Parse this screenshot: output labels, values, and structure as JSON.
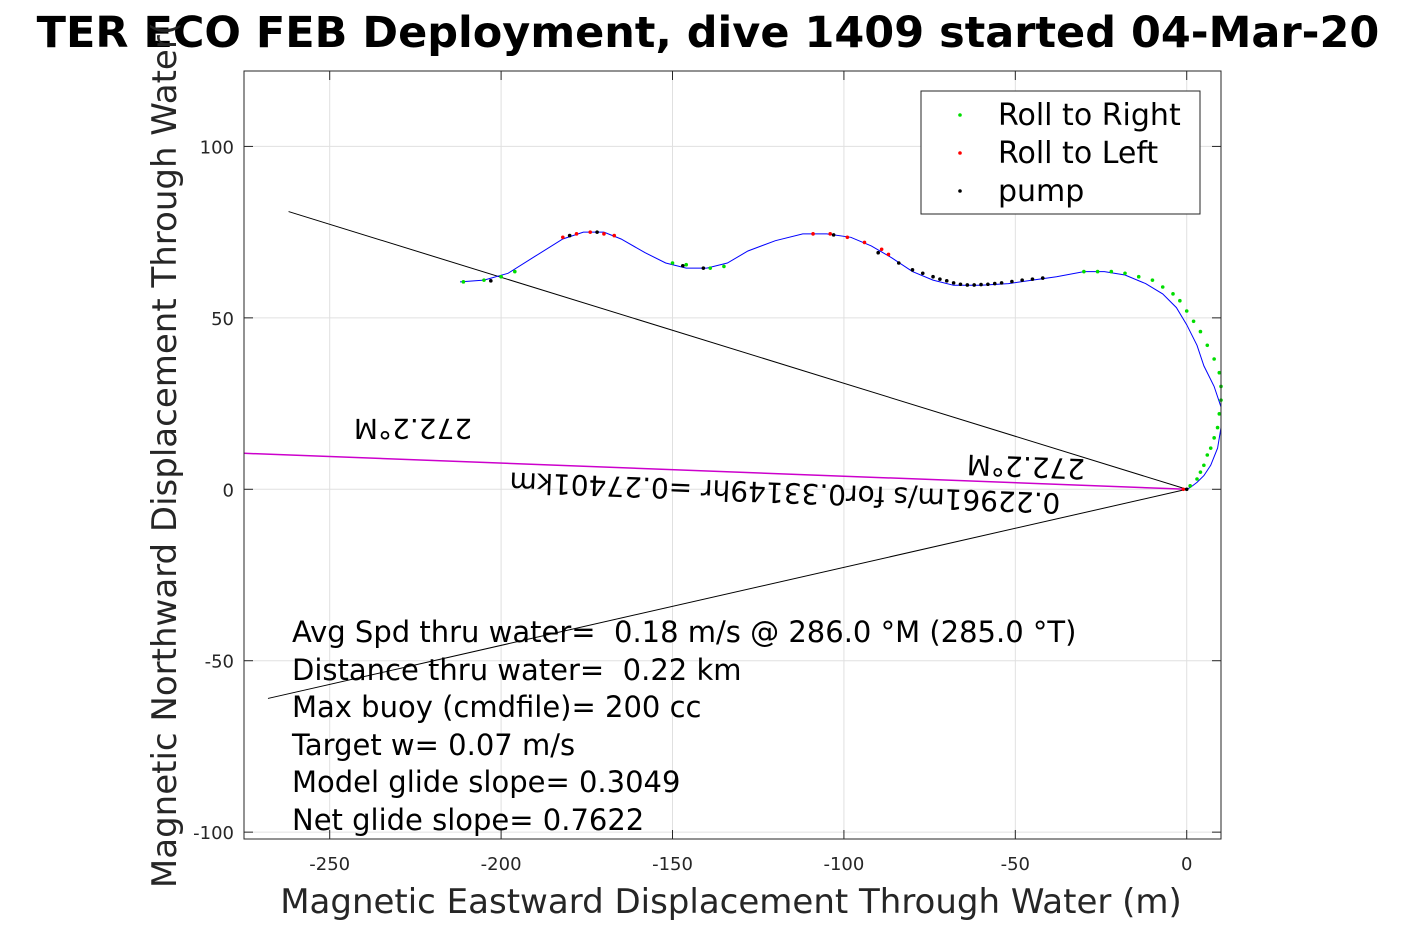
{
  "chart_data": {
    "type": "scatter",
    "title": "TER ECO FEB Deployment, dive 1409 started 04-Mar-20",
    "xlabel": "Magnetic Eastward Displacement Through Water (m)",
    "ylabel": "Magnetic Northward Displacement Through Water(",
    "xlim": [
      -275,
      10
    ],
    "ylim": [
      -102,
      122
    ],
    "xticks": [
      -250,
      -200,
      -150,
      -100,
      -50,
      0
    ],
    "yticks": [
      -100,
      -50,
      0,
      50,
      100
    ],
    "xtick_labels": [
      "-250",
      "-200",
      "-150",
      "-100",
      "-50",
      "0"
    ],
    "ytick_labels": [
      "-100",
      "-50",
      "0",
      "50",
      "100"
    ],
    "grid": true,
    "legend_position": "top-right",
    "series": [
      {
        "name": "Roll to Right",
        "color": "#00dd00",
        "marker": "dot"
      },
      {
        "name": "Roll to Left",
        "color": "#ff0000",
        "marker": "dot"
      },
      {
        "name": "pump",
        "color": "#000000",
        "marker": "dot"
      }
    ],
    "track": {
      "color": "#0000ff",
      "x": [
        -212,
        -205,
        -198,
        -190,
        -182,
        -176,
        -170,
        -165,
        -158,
        -152,
        -146,
        -140,
        -134,
        -128,
        -120,
        -112,
        -105,
        -98,
        -92,
        -86,
        -80,
        -74,
        -68,
        -60,
        -52,
        -45,
        -38,
        -30,
        -24,
        -18,
        -12,
        -7,
        -3,
        0,
        3,
        5,
        8,
        10,
        10,
        9,
        7,
        5,
        3,
        1,
        0
      ],
      "y": [
        60.5,
        61,
        63,
        68,
        73,
        75,
        75,
        73,
        69,
        66,
        64.5,
        64.5,
        66,
        69.5,
        72.5,
        74.5,
        74.5,
        73.5,
        71,
        67.5,
        63.5,
        61,
        59.5,
        59.5,
        60,
        61,
        62,
        63.5,
        63.5,
        62.5,
        60,
        57,
        53,
        48,
        42,
        36,
        30,
        24,
        18,
        12,
        7,
        4,
        2,
        0.5,
        0
      ]
    },
    "points_right": {
      "x": [
        -211,
        -205,
        -200,
        -196,
        -150,
        -146,
        -139,
        -135,
        -30,
        -26,
        -22,
        -18,
        -14,
        -10,
        -7,
        -4,
        -2,
        0,
        2,
        4,
        6,
        8,
        9.5,
        10,
        10,
        9.5,
        9,
        8,
        7,
        6,
        5,
        4,
        3,
        1
      ],
      "y": [
        60.5,
        61,
        62,
        63.5,
        66,
        65.5,
        64.5,
        65,
        63.5,
        63.5,
        63.5,
        63,
        62,
        61,
        59,
        57,
        55,
        52,
        49,
        46,
        42,
        38,
        34,
        30,
        26,
        22,
        18,
        15,
        12,
        10,
        7,
        5,
        3,
        1
      ]
    },
    "points_left": {
      "x": [
        -182,
        -178,
        -174,
        -170,
        -167,
        -109,
        -104,
        -99,
        -94,
        -89,
        -87,
        -1
      ],
      "y": [
        73.5,
        74.5,
        75,
        74.5,
        74,
        74.5,
        74.5,
        73.5,
        72,
        70,
        68.5,
        0
      ]
    },
    "points_pump": {
      "x": [
        -203,
        -180,
        -172,
        -147,
        -141,
        -103,
        -90,
        -84,
        -80,
        -77,
        -74,
        -72,
        -70,
        -68,
        -66,
        -64,
        -62,
        -60,
        -58,
        -56,
        -54,
        -51,
        -48,
        -45,
        -42,
        0
      ],
      "y": [
        60.8,
        74,
        75,
        65.2,
        64.5,
        74.2,
        69,
        66,
        64,
        63,
        62,
        61.3,
        60.8,
        60.2,
        59.8,
        59.6,
        59.6,
        59.7,
        59.8,
        60,
        60.2,
        60.6,
        61,
        61.3,
        61.6,
        0
      ]
    },
    "lines": {
      "black_upper": {
        "x": [
          -262,
          0
        ],
        "y": [
          81,
          0
        ]
      },
      "black_lower": {
        "x": [
          -268,
          0
        ],
        "y": [
          -61,
          0
        ]
      },
      "magenta": {
        "x": [
          -275,
          0
        ],
        "y": [
          10.5,
          0
        ]
      }
    },
    "annotations": {
      "heading_left": "272.2°M",
      "heading_right": "272.2°M",
      "speed_text": "0.22961m/s for0.33149hr =0.27401km",
      "stats": [
        "Avg Spd thru water=  0.18 m/s @ 286.0 °M (285.0 °T)",
        "Distance thru water=  0.22 km",
        "Max buoy (cmdfile)= 200 cc",
        "Target w= 0.07 m/s",
        "Model glide slope= 0.3049",
        "Net glide slope= 0.7622"
      ]
    }
  }
}
